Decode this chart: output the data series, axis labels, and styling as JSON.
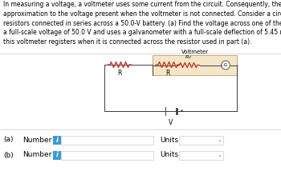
{
  "body_text": "In measuring a voltage, a voltmeter uses some current from the circuit. Consequently, the voltage measured is only an\napproximation to the voltage present when the voltmeter is not connected. Consider a circuit consisting of two 2060-Ω\nresistors connected in series across a 50.0-V battery. (a) Find the voltage across one of the resistors. (b) A voltmeter has\na full-scale voltage of 50.0 V and uses a galvanometer with a full-scale deflection of 5.45 mA. Determine the voltage that\nthis voltmeter registers when it is connected across the resistor used in part (a).",
  "voltmeter_label": "Voltmeter",
  "rv_label": "$R_V$",
  "r_label": "R",
  "v_label": "V",
  "g_label": "G",
  "a_label": "(a)",
  "b_label": "(b)",
  "number_label": "Number",
  "units_label": "Units",
  "i_label": "i",
  "bg_color": "#ffffff",
  "voltmeter_box_color": "#f5e6c8",
  "voltmeter_box_edge": "#c8a878",
  "circuit_line_color": "#404040",
  "resistor_color": "#c0392b",
  "box_fill_color": "#3a9ad9",
  "text_color": "#000000",
  "font_size_body": 5.5,
  "font_size_form": 6.5,
  "font_size_circuit": 5.5,
  "font_size_voltmeter": 5.0,
  "separators": [
    152,
    57
  ],
  "sep_color": "#cccccc"
}
